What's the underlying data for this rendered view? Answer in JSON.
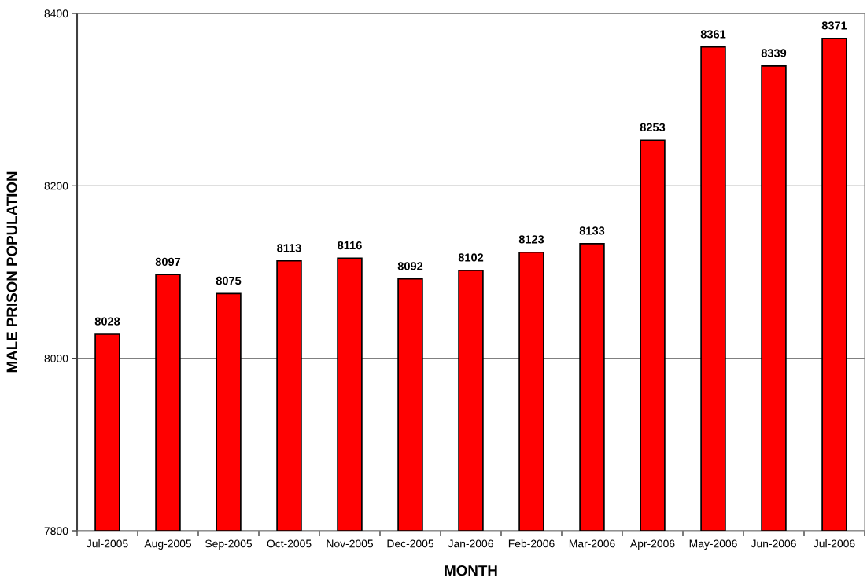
{
  "chart_data": {
    "type": "bar",
    "xlabel": "MONTH",
    "ylabel": "MALE PRISON POPULATION",
    "categories": [
      "Jul-2005",
      "Aug-2005",
      "Sep-2005",
      "Oct-2005",
      "Nov-2005",
      "Dec-2005",
      "Jan-2006",
      "Feb-2006",
      "Mar-2006",
      "Apr-2006",
      "May-2006",
      "Jun-2006",
      "Jul-2006"
    ],
    "values": [
      8028,
      8097,
      8075,
      8113,
      8116,
      8092,
      8102,
      8123,
      8133,
      8253,
      8361,
      8339,
      8371
    ],
    "color": "#ff0000",
    "ylim": [
      7800,
      8400
    ],
    "yticks": [
      7800,
      8000,
      8200,
      8400
    ],
    "grid": "y",
    "data_labels": true
  }
}
